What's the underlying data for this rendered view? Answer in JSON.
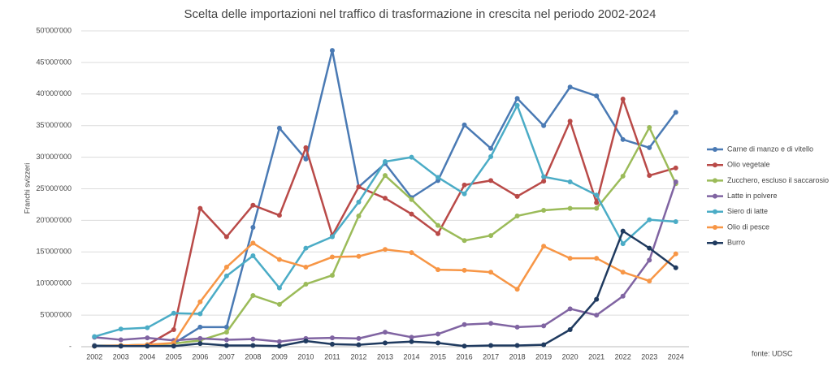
{
  "chart_data": {
    "type": "line",
    "title": "Scelta delle importazioni nel traffico di trasformazione in crescita nel periodo 2002-2024",
    "y_label": "Franchi svizzeri",
    "annotation": "fonte: UDSC",
    "categories": [
      "2002",
      "2003",
      "2004",
      "2005",
      "2006",
      "2007",
      "2008",
      "2009",
      "2010",
      "2011",
      "2012",
      "2013",
      "2014",
      "2015",
      "2016",
      "2017",
      "2018",
      "2019",
      "2020",
      "2021",
      "2022",
      "2023",
      "2024"
    ],
    "ylim": [
      0,
      50000000
    ],
    "yticks": [
      {
        "value": 0,
        "label": "-"
      },
      {
        "value": 5000000,
        "label": "5'000'000"
      },
      {
        "value": 10000000,
        "label": "10'000'000"
      },
      {
        "value": 15000000,
        "label": "15'000'000"
      },
      {
        "value": 20000000,
        "label": "20'000'000"
      },
      {
        "value": 25000000,
        "label": "25'000'000"
      },
      {
        "value": 30000000,
        "label": "30'000'000"
      },
      {
        "value": 35000000,
        "label": "35'000'000"
      },
      {
        "value": 40000000,
        "label": "40'000'000"
      },
      {
        "value": 45000000,
        "label": "45'000'000"
      },
      {
        "value": 50000000,
        "label": "50'000'000"
      }
    ],
    "grid": true,
    "legend": "right",
    "series": [
      {
        "name": "Carne di manzo e di vitello",
        "color": "#4a7ab4",
        "values": [
          200000,
          200000,
          300000,
          500000,
          3100000,
          3100000,
          18900000,
          34600000,
          29700000,
          46900000,
          25300000,
          29000000,
          23600000,
          26300000,
          35100000,
          31400000,
          39300000,
          35000000,
          41100000,
          39700000,
          32800000,
          31500000,
          37100000
        ]
      },
      {
        "name": "Olio vegetale",
        "color": "#b94a48",
        "values": [
          100000,
          100000,
          300000,
          2700000,
          21900000,
          17400000,
          22400000,
          20800000,
          31500000,
          17600000,
          25300000,
          23500000,
          21000000,
          17900000,
          25600000,
          26300000,
          23800000,
          26200000,
          35700000,
          22800000,
          39200000,
          27100000,
          28300000
        ]
      },
      {
        "name": "Zucchero, escluso il saccarosio",
        "color": "#9bbb59",
        "values": [
          100000,
          200000,
          300000,
          500000,
          1000000,
          2300000,
          8100000,
          6700000,
          9900000,
          11300000,
          20700000,
          27100000,
          23300000,
          19200000,
          16800000,
          17600000,
          20700000,
          21600000,
          21900000,
          21900000,
          27000000,
          34700000,
          25800000
        ]
      },
      {
        "name": "Latte in polvere",
        "color": "#8064a2",
        "values": [
          1500000,
          1100000,
          1400000,
          1000000,
          1300000,
          1100000,
          1200000,
          800000,
          1300000,
          1400000,
          1300000,
          2300000,
          1500000,
          2000000,
          3500000,
          3700000,
          3100000,
          3300000,
          6000000,
          5000000,
          8000000,
          13700000,
          26100000
        ]
      },
      {
        "name": "Siero di latte",
        "color": "#4bacc6",
        "values": [
          1600000,
          2800000,
          3000000,
          5300000,
          5200000,
          11200000,
          14400000,
          9300000,
          15600000,
          17400000,
          22900000,
          29300000,
          30000000,
          26800000,
          24200000,
          30100000,
          38200000,
          26900000,
          26100000,
          24000000,
          16300000,
          20100000,
          19800000
        ]
      },
      {
        "name": "Olio di pesce",
        "color": "#f79646",
        "values": [
          100000,
          200000,
          300000,
          600000,
          7100000,
          12600000,
          16400000,
          13800000,
          12600000,
          14200000,
          14300000,
          15400000,
          14900000,
          12200000,
          12100000,
          11800000,
          9100000,
          15900000,
          14000000,
          14000000,
          11800000,
          10400000,
          14700000
        ]
      },
      {
        "name": "Burro",
        "color": "#1f3a5f",
        "values": [
          100000,
          100000,
          100000,
          100000,
          500000,
          200000,
          200000,
          100000,
          900000,
          400000,
          300000,
          600000,
          800000,
          600000,
          100000,
          200000,
          200000,
          300000,
          2700000,
          7500000,
          18300000,
          15600000,
          12500000
        ]
      }
    ]
  }
}
